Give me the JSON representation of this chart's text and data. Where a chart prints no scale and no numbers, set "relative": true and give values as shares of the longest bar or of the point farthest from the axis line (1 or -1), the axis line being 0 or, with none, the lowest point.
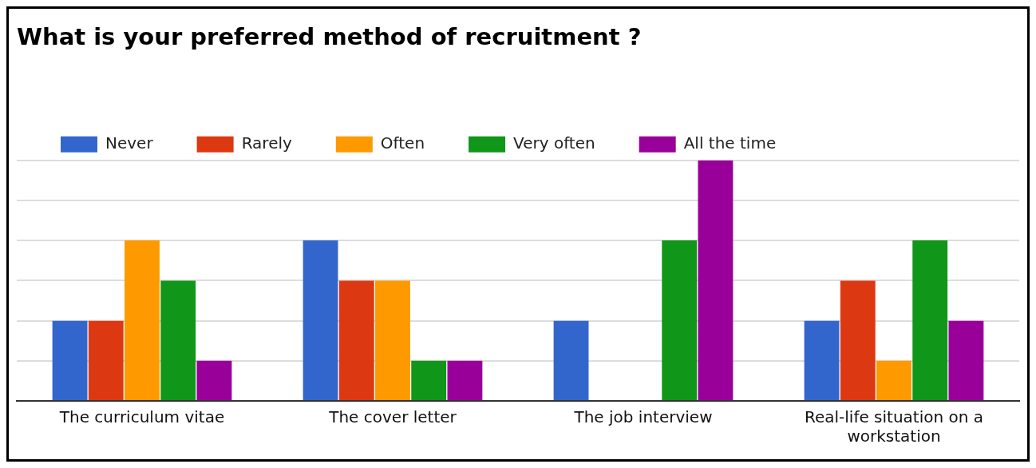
{
  "chart_data": {
    "type": "bar",
    "title": "What is your preferred method of recruitment ?",
    "relative": true,
    "grid": "y",
    "legend": "top left",
    "categories": [
      "The curriculum vitae",
      "The cover letter",
      "The job interview",
      "Real-life situation on a workstation"
    ],
    "series": [
      {
        "name": "Never",
        "color": "#3366cc",
        "values": [
          0.333,
          0.667,
          0.333,
          0.333
        ]
      },
      {
        "name": "Rarely",
        "color": "#dc3912",
        "values": [
          0.333,
          0.5,
          0,
          0.5
        ]
      },
      {
        "name": "Often",
        "color": "#ff9900",
        "values": [
          0.667,
          0.5,
          0,
          0.167
        ]
      },
      {
        "name": "Very often",
        "color": "#109618",
        "values": [
          0.5,
          0.167,
          0.667,
          0.667
        ]
      },
      {
        "name": "All the time",
        "color": "#990099",
        "values": [
          0.167,
          0.167,
          1,
          0.333
        ]
      }
    ]
  }
}
